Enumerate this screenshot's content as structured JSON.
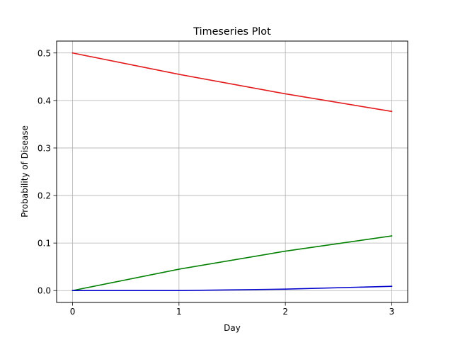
{
  "chart_data": {
    "type": "line",
    "title": "Timeseries Plot",
    "xlabel": "Day",
    "ylabel": "Probability of Disease",
    "x": [
      0,
      1,
      2,
      3
    ],
    "xlim": [
      -0.15,
      3.15
    ],
    "ylim": [
      -0.025,
      0.525
    ],
    "xticks": [
      0,
      1,
      2,
      3
    ],
    "yticks": [
      0.0,
      0.1,
      0.2,
      0.3,
      0.4,
      0.5
    ],
    "xtick_labels": [
      "0",
      "1",
      "2",
      "3"
    ],
    "ytick_labels": [
      "0.0",
      "0.1",
      "0.2",
      "0.3",
      "0.4",
      "0.5"
    ],
    "grid": true,
    "legend": false,
    "series": [
      {
        "color": "#e31a1c",
        "values": [
          0.5,
          0.455,
          0.414,
          0.377
        ]
      },
      {
        "color": "#008000",
        "values": [
          0.0,
          0.045,
          0.083,
          0.115
        ]
      },
      {
        "color": "#0000cc",
        "values": [
          0.0,
          0.0,
          0.003,
          0.009
        ]
      }
    ]
  }
}
